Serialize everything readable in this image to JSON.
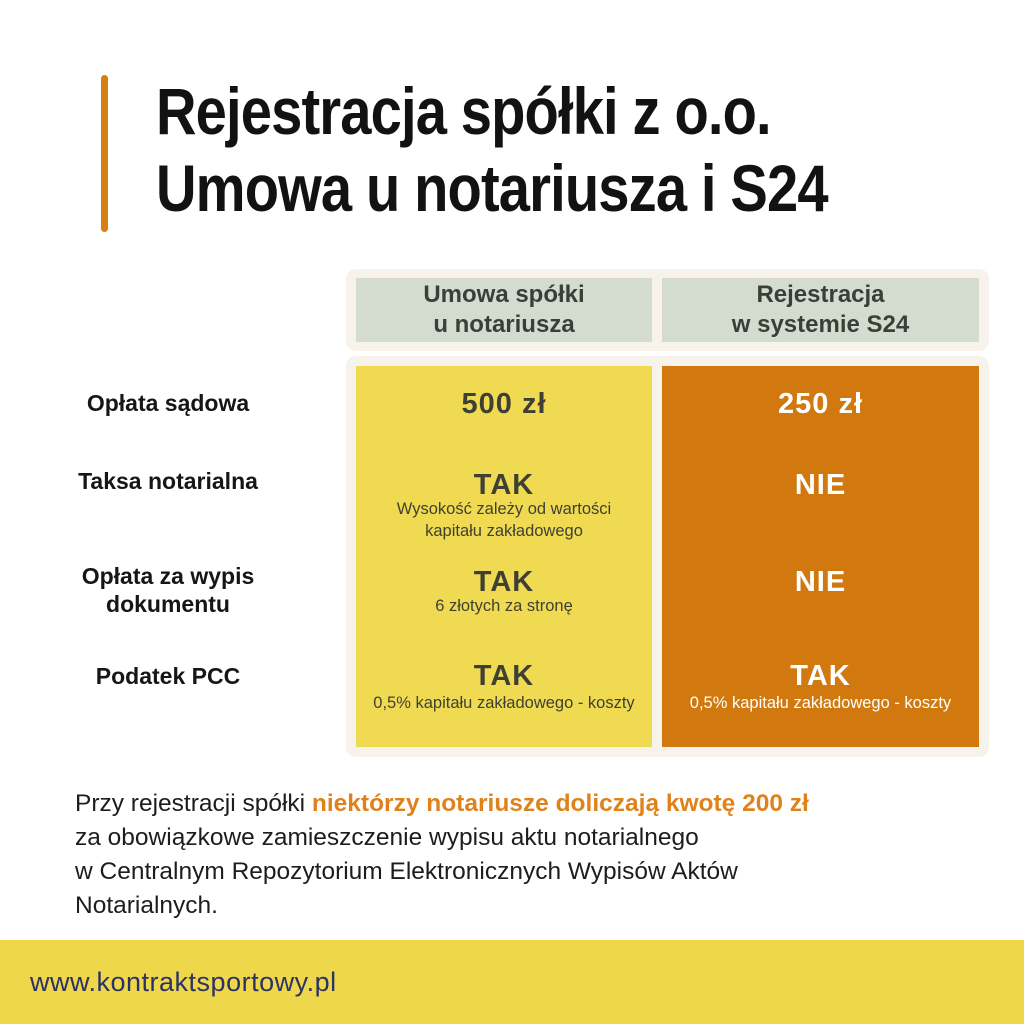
{
  "title": {
    "line1": "Rejestracja spółki z o.o.",
    "line2": "Umowa u notariusza i S24",
    "accent_color": "#d97e12",
    "text_color": "#121212"
  },
  "comparison_table": {
    "card_bg": "#f7f2ec",
    "header_bg": "#d4dcd0",
    "header_text_color": "#3a4039",
    "columns": [
      {
        "id": "notary",
        "header": "Umowa spółki\nu notariusza",
        "color": "#f0da52",
        "text_color": "#3f4034"
      },
      {
        "id": "s24",
        "header": "Rejestracja\nw systemie S24",
        "color": "#d1790f",
        "text_color": "#ffffff"
      }
    ],
    "row_labels": [
      "Opłata sądowa",
      "Taksa notarialna",
      "Opłata za wypis\ndokumentu",
      "Podatek PCC"
    ],
    "notary_column": {
      "row1_value": "500 zł",
      "row2_value": "TAK",
      "row2_note": "Wysokość zależy od wartości\nkapitału zakładowego",
      "row3_value": "TAK",
      "row3_note": "6 złotych za stronę",
      "row4_value": "TAK",
      "row4_note": "0,5% kapitału zakładowego - koszty"
    },
    "s24_column": {
      "row1_value": "250 zł",
      "row2_value": "NIE",
      "row3_value": "NIE",
      "row4_value": "TAK",
      "row4_note": "0,5% kapitału zakładowego - koszty"
    }
  },
  "note": {
    "line1_prefix": "Przy rejestracji spółki ",
    "line1_highlight": "niektórzy notariusze doliczają kwotę 200 zł",
    "line2": "za obowiązkowe zamieszczenie wypisu aktu notarialnego",
    "line3": "w Centralnym Repozytorium Elektronicznych Wypisów Aktów",
    "line4": "Notarialnych.",
    "highlight_color": "#e0821b"
  },
  "footer": {
    "url": "www.kontraktsportowy.pl",
    "bg": "#eed74b",
    "text_color": "#2b3364"
  }
}
